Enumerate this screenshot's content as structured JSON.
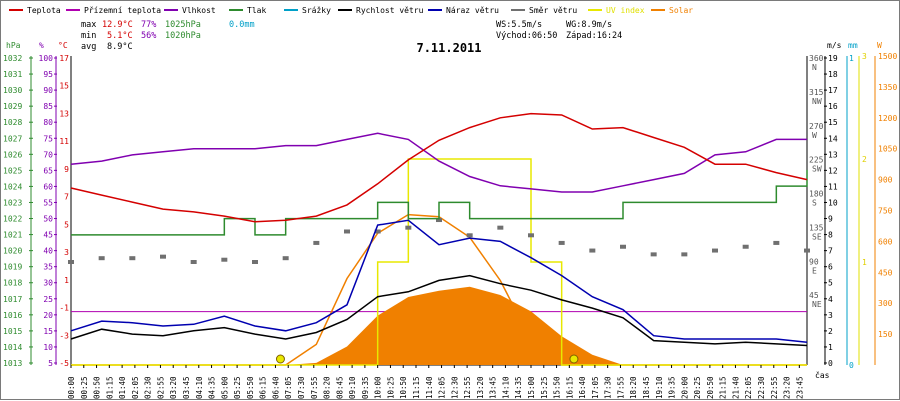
{
  "chart_data": {
    "type": "line",
    "title": "7.11.2011",
    "legend": [
      {
        "name": "Teplota",
        "color": "#d40000"
      },
      {
        "name": "Přízemní teplota",
        "color": "#b000b0"
      },
      {
        "name": "Vlhkost",
        "color": "#8000b0"
      },
      {
        "name": "Tlak",
        "color": "#2e8b2e"
      },
      {
        "name": "Srážky",
        "color": "#00a0c8"
      },
      {
        "name": "Rychlost větru",
        "color": "#000000"
      },
      {
        "name": "Náraz větru",
        "color": "#0000b0"
      },
      {
        "name": "Směr větru",
        "color": "#707070"
      },
      {
        "name": "UV index",
        "color": "#e8e800"
      },
      {
        "name": "Solar",
        "color": "#f08000"
      }
    ],
    "stats": {
      "max_label": "max",
      "max_temp": "12.9°C",
      "max_hum": "77%",
      "max_press": "1025hPa",
      "max_rain": "0.0mm",
      "min_label": "min",
      "min_temp": "5.1°C",
      "min_hum": "56%",
      "min_press": "1020hPa",
      "avg_label": "avg",
      "avg_temp": "8.9°C",
      "ws": "WS:5.5m/s",
      "wg": "WG:8.9m/s",
      "sunrise": "Východ:06:50",
      "sunset": "Západ:16:24"
    },
    "axes": {
      "hpa_label": "hPa",
      "pct_label": "%",
      "temp_label": "°C",
      "ms_label": "m/s",
      "mm_label": "mm",
      "w_label": "W",
      "x_label": "čas",
      "hpa_ticks": [
        "1032",
        "1031",
        "1030",
        "1029",
        "1028",
        "1027",
        "1026",
        "1025",
        "1024",
        "1023",
        "1022",
        "1021",
        "1020",
        "1019",
        "1018",
        "1017",
        "1016",
        "1015",
        "1014",
        "1013"
      ],
      "pct_ticks": [
        "100",
        "95",
        "90",
        "85",
        "80",
        "75",
        "70",
        "65",
        "60",
        "55",
        "50",
        "45",
        "40",
        "35",
        "30",
        "25",
        "20",
        "15",
        "10",
        "5"
      ],
      "temp_ticks": [
        "17",
        "15",
        "13",
        "11",
        "9",
        "7",
        "5",
        "3",
        "1",
        "-1",
        "-3",
        "-5"
      ],
      "ms_ticks": [
        "19",
        "18",
        "17",
        "16",
        "15",
        "14",
        "13",
        "12",
        "11",
        "10",
        "9",
        "8",
        "7",
        "6",
        "5",
        "4",
        "3",
        "2",
        "1",
        "0"
      ],
      "dir_ticks": [
        {
          "deg": "360",
          "dir": "N"
        },
        {
          "deg": "315",
          "dir": "NW"
        },
        {
          "deg": "270",
          "dir": "W"
        },
        {
          "deg": "225",
          "dir": "SW"
        },
        {
          "deg": "180",
          "dir": "S"
        },
        {
          "deg": "135",
          "dir": "SE"
        },
        {
          "deg": "90",
          "dir": "E"
        },
        {
          "deg": "45",
          "dir": "NE"
        }
      ],
      "mm_ticks": [
        "1",
        "0"
      ],
      "w_ticks": [
        "1500",
        "1350",
        "1200",
        "1050",
        "900",
        "750",
        "600",
        "450",
        "300",
        "150"
      ],
      "uv_ticks": [
        "3",
        "2",
        "1"
      ],
      "x_ticks": [
        "00:00",
        "00:25",
        "00:50",
        "01:15",
        "01:40",
        "02:05",
        "02:30",
        "02:55",
        "03:20",
        "03:45",
        "04:10",
        "04:35",
        "05:00",
        "05:25",
        "05:50",
        "06:15",
        "06:40",
        "07:05",
        "07:30",
        "07:55",
        "08:20",
        "08:45",
        "09:10",
        "09:35",
        "10:00",
        "10:25",
        "10:50",
        "11:15",
        "11:40",
        "12:05",
        "12:30",
        "12:55",
        "13:20",
        "13:45",
        "14:10",
        "14:35",
        "15:00",
        "15:25",
        "15:50",
        "16:15",
        "16:40",
        "17:05",
        "17:30",
        "17:55",
        "18:20",
        "18:45",
        "19:10",
        "19:35",
        "20:00",
        "20:25",
        "20:50",
        "21:15",
        "21:40",
        "22:05",
        "22:30",
        "22:55",
        "23:20",
        "23:45"
      ]
    },
    "ranges": {
      "temp": [
        -5,
        17
      ],
      "hum": [
        0,
        100
      ],
      "press": [
        1013,
        1032
      ],
      "wind": [
        0,
        19
      ],
      "dir": [
        0,
        405
      ],
      "solar": [
        0,
        1500
      ],
      "uv": [
        0,
        3
      ]
    },
    "hours": [
      0,
      1,
      2,
      3,
      4,
      5,
      6,
      7,
      8,
      9,
      10,
      11,
      12,
      13,
      14,
      15,
      16,
      17,
      18,
      19,
      20,
      21,
      22,
      23,
      24
    ],
    "temperature": [
      7.6,
      7.1,
      6.6,
      6.1,
      5.9,
      5.6,
      5.2,
      5.3,
      5.6,
      6.4,
      7.9,
      9.6,
      11.0,
      11.9,
      12.6,
      12.9,
      12.8,
      11.8,
      11.9,
      11.2,
      10.5,
      9.3,
      9.3,
      8.7,
      8.2
    ],
    "humidity": [
      65,
      66,
      68,
      69,
      70,
      70,
      70,
      71,
      71,
      73,
      75,
      73,
      66,
      61,
      58,
      57,
      56,
      56,
      58,
      60,
      62,
      68,
      69,
      73,
      73
    ],
    "pressure": [
      1021,
      1021,
      1021,
      1021,
      1021,
      1022,
      1021,
      1022,
      1022,
      1022,
      1023,
      1022,
      1023,
      1022,
      1022,
      1022,
      1022,
      1022,
      1023,
      1023,
      1023,
      1023,
      1023,
      1024,
      1025
    ],
    "wind_speed": [
      1.6,
      2.2,
      1.9,
      1.8,
      2.1,
      2.3,
      1.9,
      1.6,
      2.0,
      2.8,
      4.2,
      4.5,
      5.2,
      5.5,
      5.0,
      4.6,
      4.0,
      3.5,
      2.9,
      1.5,
      1.4,
      1.3,
      1.4,
      1.3,
      1.2
    ],
    "wind_gust": [
      2.1,
      2.7,
      2.6,
      2.4,
      2.5,
      3.0,
      2.4,
      2.1,
      2.6,
      3.7,
      8.6,
      8.9,
      7.4,
      7.8,
      7.6,
      6.6,
      5.5,
      4.2,
      3.4,
      1.8,
      1.6,
      1.6,
      1.6,
      1.6,
      1.4
    ],
    "wind_dir": [
      135,
      140,
      140,
      142,
      135,
      138,
      135,
      140,
      160,
      175,
      175,
      180,
      190,
      170,
      180,
      170,
      160,
      150,
      155,
      145,
      145,
      150,
      155,
      160,
      150
    ],
    "solar": [
      0,
      0,
      0,
      0,
      0,
      0,
      0,
      0,
      10,
      90,
      240,
      330,
      360,
      380,
      340,
      260,
      140,
      50,
      0,
      0,
      0,
      0,
      0,
      0,
      0
    ],
    "solar_curve": [
      0,
      0,
      0,
      0,
      0,
      0,
      0,
      0,
      100,
      420,
      640,
      730,
      720,
      620,
      410,
      120,
      0,
      0,
      0,
      0,
      0,
      0,
      0,
      0,
      0
    ],
    "uv": [
      0,
      0,
      0,
      0,
      0,
      0,
      0,
      0,
      0,
      0,
      1,
      2,
      2,
      2,
      2,
      1,
      0,
      0,
      0,
      0,
      0,
      0,
      0,
      0,
      0
    ],
    "sunrise_h": 6.83,
    "sunset_h": 16.4
  }
}
